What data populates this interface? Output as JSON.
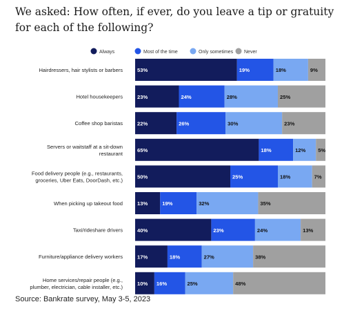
{
  "chart_data": {
    "type": "bar",
    "orientation": "horizontal",
    "stacked": true,
    "title": "We asked: How often, if ever, do you leave a tip or gratuity for each of the following?",
    "categories": [
      "Hairdressers, hair stylists or barbers",
      "Hotel housekeepers",
      "Coffee shop baristas",
      "Servers or waitstaff at a sit-down restaurant",
      "Food delivery people (e.g., restaurants, groceries, Uber Eats, DoorDash, etc.)",
      "When picking up takeout food",
      "Taxi/rideshare drivers",
      "Furniture/appliance delivery workers",
      "Home services/repair people (e.g., plumber, electrician, cable installer, etc.)"
    ],
    "category_lines": [
      [
        "Hairdressers, hair stylists or barbers"
      ],
      [
        "Hotel housekeepers"
      ],
      [
        "Coffee shop baristas"
      ],
      [
        "Servers or waitstaff at a sit-down",
        "restaurant"
      ],
      [
        "Food delivery people (e.g., restaurants,",
        "groceries, Uber Eats, DoorDash, etc.)"
      ],
      [
        "When picking up takeout food"
      ],
      [
        "Taxi/rideshare drivers"
      ],
      [
        "Furniture/appliance delivery workers"
      ],
      [
        "Home services/repair people (e.g.,",
        "plumber, electrician, cable installer, etc.)"
      ]
    ],
    "series": [
      {
        "name": "Always",
        "color": "#121c5c",
        "values": [
          53,
          23,
          22,
          65,
          50,
          13,
          40,
          17,
          10
        ]
      },
      {
        "name": "Most of the time",
        "color": "#2355e6",
        "values": [
          19,
          24,
          26,
          18,
          25,
          19,
          23,
          18,
          16
        ]
      },
      {
        "name": "Only sometimes",
        "color": "#79a8f2",
        "values": [
          18,
          28,
          30,
          12,
          18,
          32,
          24,
          27,
          25
        ]
      },
      {
        "name": "Never",
        "color": "#a0a0a0",
        "values": [
          9,
          25,
          23,
          5,
          7,
          35,
          13,
          38,
          48
        ]
      }
    ],
    "value_suffix": "%",
    "legend_position": "top",
    "grid": false
  },
  "source": "Source: Bankrate survey, May 3-5, 2023"
}
